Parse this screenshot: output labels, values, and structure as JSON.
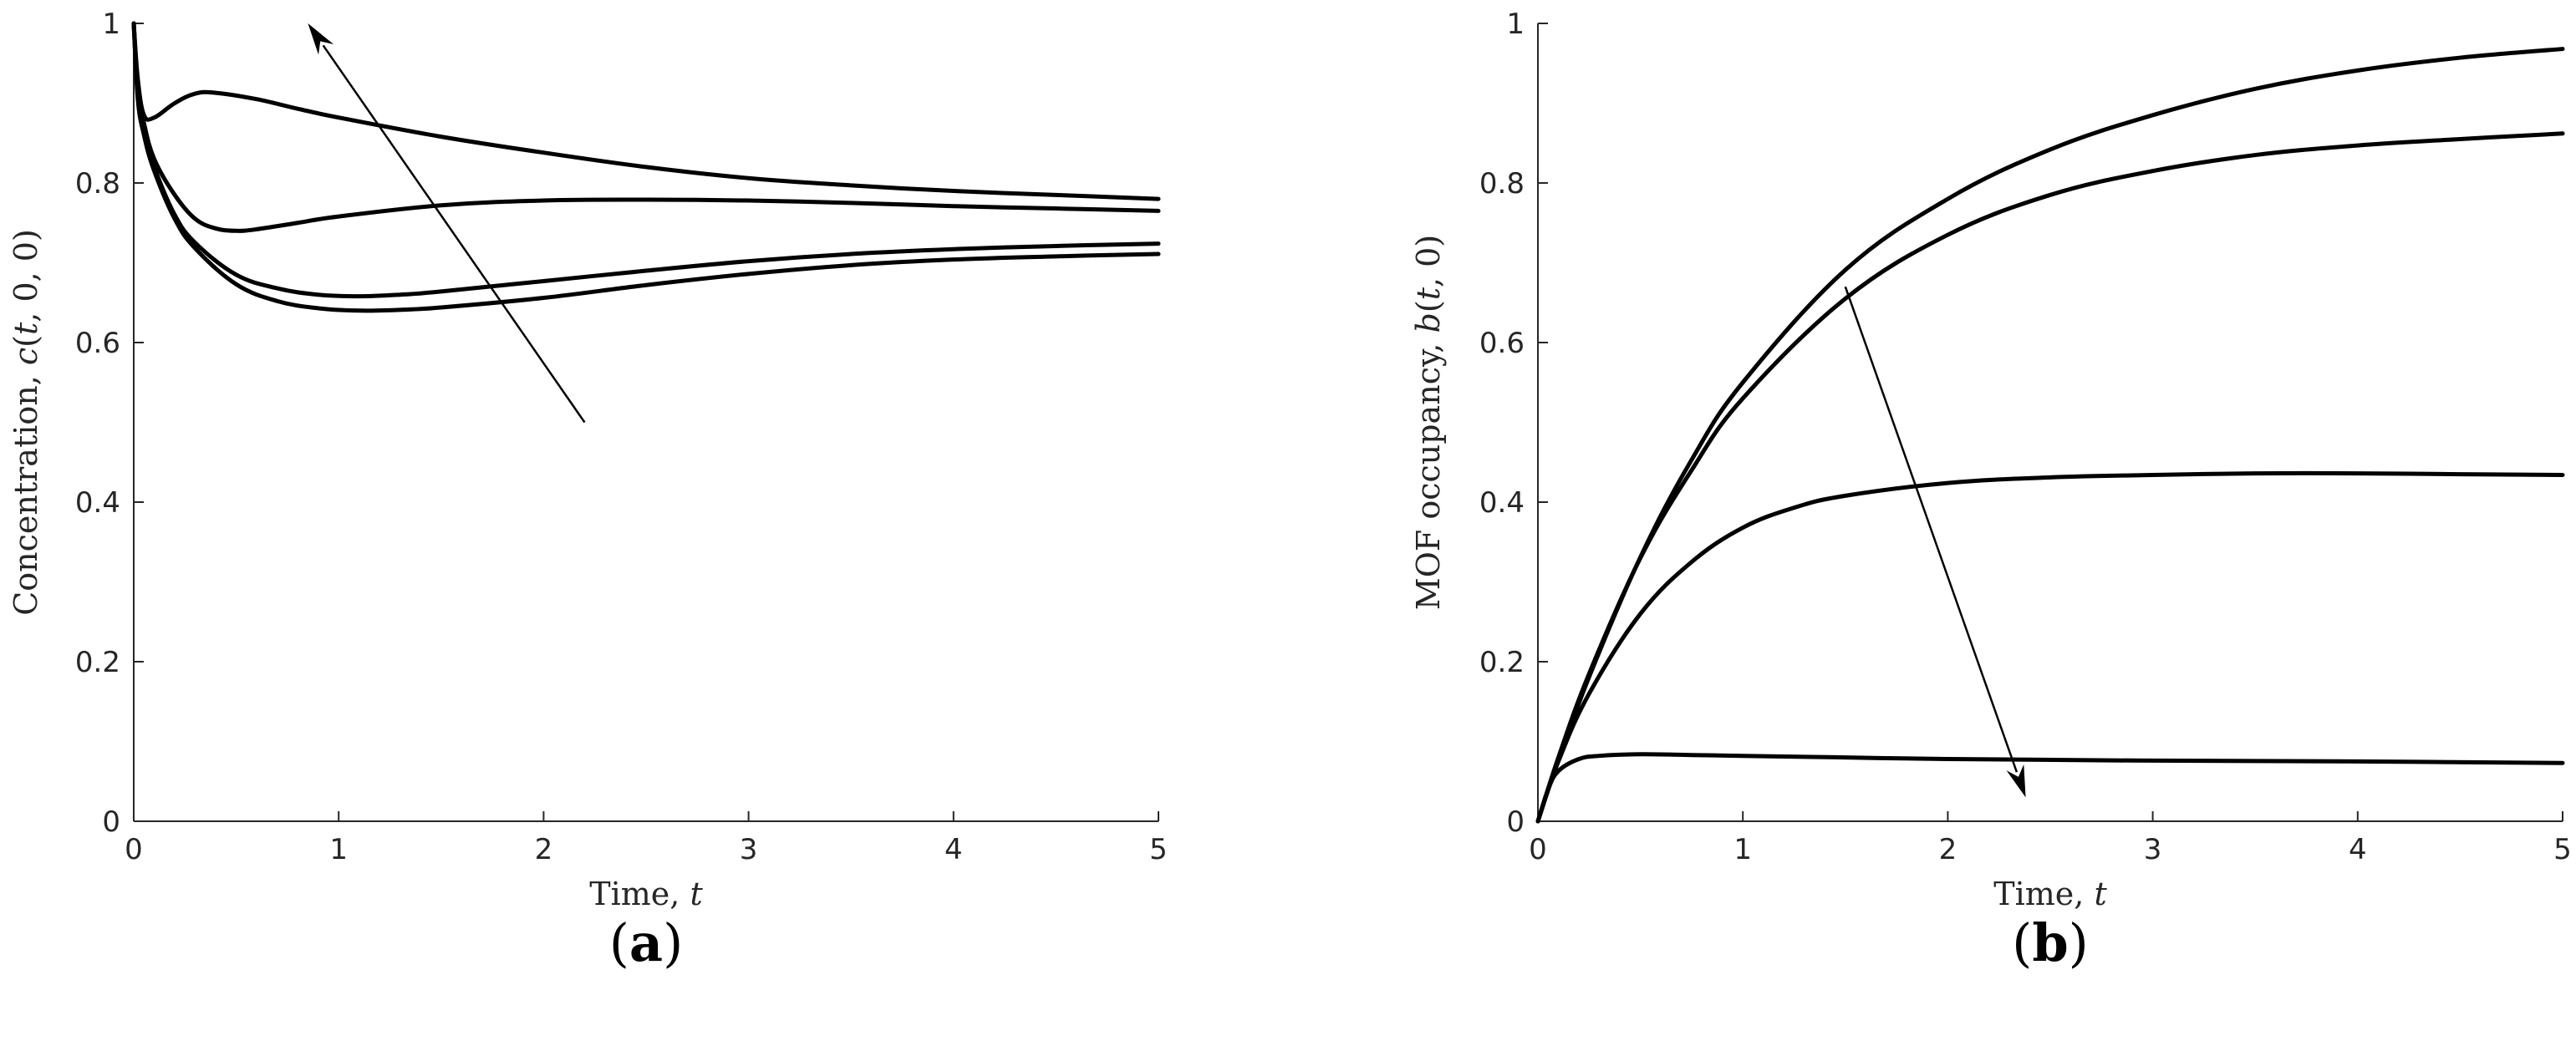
{
  "chart_data": [
    {
      "type": "line",
      "panel_label": "a",
      "xlabel": "Time, t",
      "ylabel": "Concentration, c(t, 0, 0)",
      "xlim": [
        0,
        5
      ],
      "ylim": [
        0,
        1
      ],
      "xticks": [
        0,
        1,
        2,
        3,
        4,
        5
      ],
      "yticks": [
        0,
        0.2,
        0.4,
        0.6,
        0.8,
        1
      ],
      "ytick_labels": [
        "0",
        "0.2",
        "0.4",
        "0.6",
        "0.8",
        "1"
      ],
      "grid": false,
      "line_color": "#000000",
      "series": [
        {
          "x": [
            0,
            0.02,
            0.05,
            0.1,
            0.2,
            0.3,
            0.4,
            0.6,
            0.8,
            1.0,
            1.5,
            2.0,
            2.5,
            3.0,
            3.5,
            4.0,
            4.5,
            5.0
          ],
          "values": [
            1.0,
            0.93,
            0.885,
            0.882,
            0.9,
            0.912,
            0.913,
            0.905,
            0.893,
            0.882,
            0.858,
            0.838,
            0.82,
            0.806,
            0.797,
            0.79,
            0.785,
            0.78
          ]
        },
        {
          "x": [
            0,
            0.02,
            0.05,
            0.1,
            0.2,
            0.3,
            0.4,
            0.5,
            0.6,
            0.8,
            1.0,
            1.5,
            2.0,
            2.5,
            3.0,
            3.5,
            4.0,
            4.5,
            5.0
          ],
          "values": [
            1.0,
            0.92,
            0.875,
            0.83,
            0.785,
            0.755,
            0.743,
            0.74,
            0.742,
            0.75,
            0.758,
            0.772,
            0.778,
            0.779,
            0.778,
            0.775,
            0.771,
            0.768,
            0.765
          ]
        },
        {
          "x": [
            0,
            0.02,
            0.05,
            0.1,
            0.2,
            0.3,
            0.5,
            0.7,
            0.9,
            1.1,
            1.3,
            1.5,
            2.0,
            2.5,
            3.0,
            3.5,
            4.0,
            4.5,
            5.0
          ],
          "values": [
            1.0,
            0.91,
            0.865,
            0.82,
            0.76,
            0.725,
            0.685,
            0.668,
            0.66,
            0.658,
            0.66,
            0.664,
            0.677,
            0.69,
            0.702,
            0.711,
            0.717,
            0.721,
            0.724
          ]
        },
        {
          "x": [
            0,
            0.02,
            0.05,
            0.1,
            0.2,
            0.3,
            0.5,
            0.7,
            0.9,
            1.1,
            1.3,
            1.5,
            2.0,
            2.5,
            3.0,
            3.5,
            4.0,
            4.5,
            5.0
          ],
          "values": [
            1.0,
            0.905,
            0.86,
            0.815,
            0.755,
            0.718,
            0.673,
            0.652,
            0.643,
            0.64,
            0.641,
            0.644,
            0.656,
            0.672,
            0.686,
            0.697,
            0.704,
            0.708,
            0.711
          ]
        }
      ],
      "annotation_arrow": {
        "from": [
          2.2,
          0.5
        ],
        "to": [
          0.85,
          1.0
        ]
      }
    },
    {
      "type": "line",
      "panel_label": "b",
      "xlabel": "Time, t",
      "ylabel": "MOF occupancy, b(t, 0)",
      "xlim": [
        0,
        5
      ],
      "ylim": [
        0,
        1
      ],
      "xticks": [
        0,
        1,
        2,
        3,
        4,
        5
      ],
      "yticks": [
        0,
        0.2,
        0.4,
        0.6,
        0.8,
        1
      ],
      "ytick_labels": [
        "0",
        "0.2",
        "0.4",
        "0.6",
        "0.8",
        "1"
      ],
      "grid": false,
      "line_color": "#000000",
      "series": [
        {
          "x": [
            0,
            0.1,
            0.25,
            0.5,
            0.75,
            1.0,
            1.5,
            2.0,
            2.5,
            3.0,
            3.5,
            4.0,
            4.5,
            5.0
          ],
          "values": [
            0,
            0.077,
            0.181,
            0.331,
            0.453,
            0.55,
            0.691,
            0.78,
            0.842,
            0.885,
            0.918,
            0.941,
            0.957,
            0.968
          ]
        },
        {
          "x": [
            0,
            0.1,
            0.25,
            0.5,
            0.75,
            1.0,
            1.5,
            2.0,
            2.5,
            3.0,
            3.5,
            4.0,
            4.5,
            5.0
          ],
          "values": [
            0,
            0.08,
            0.185,
            0.33,
            0.44,
            0.53,
            0.655,
            0.735,
            0.785,
            0.815,
            0.835,
            0.847,
            0.855,
            0.862
          ]
        },
        {
          "x": [
            0,
            0.1,
            0.25,
            0.5,
            0.75,
            1.0,
            1.25,
            1.5,
            2.0,
            2.5,
            3.0,
            3.5,
            4.0,
            4.5,
            5.0
          ],
          "values": [
            0,
            0.075,
            0.16,
            0.26,
            0.325,
            0.368,
            0.393,
            0.408,
            0.424,
            0.431,
            0.434,
            0.436,
            0.436,
            0.435,
            0.434
          ]
        },
        {
          "x": [
            0,
            0.05,
            0.1,
            0.2,
            0.3,
            0.5,
            0.75,
            1.0,
            1.5,
            2.0,
            3.0,
            4.0,
            5.0
          ],
          "values": [
            0,
            0.04,
            0.063,
            0.078,
            0.082,
            0.084,
            0.083,
            0.082,
            0.08,
            0.078,
            0.076,
            0.075,
            0.073
          ]
        }
      ],
      "annotation_arrow": {
        "from": [
          1.5,
          0.67
        ],
        "to": [
          2.38,
          0.03
        ]
      }
    }
  ]
}
